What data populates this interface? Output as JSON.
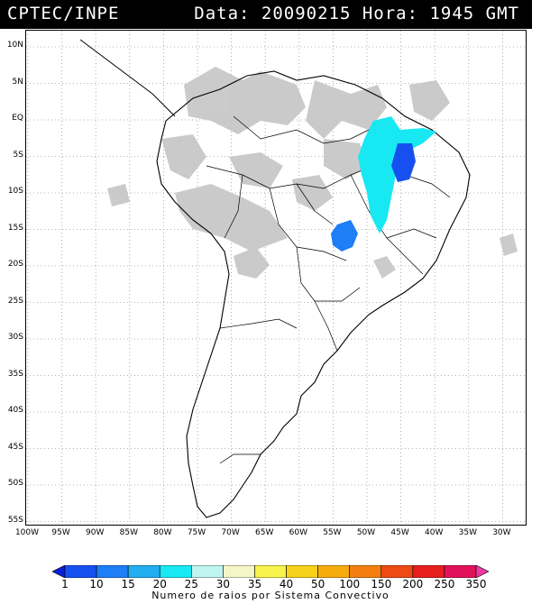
{
  "header": {
    "source": "CPTEC/INPE",
    "datetime": "Data: 20090215 Hora: 1945 GMT"
  },
  "axes": {
    "lat_labels": [
      "10N",
      "5N",
      "EQ",
      "5S",
      "10S",
      "15S",
      "20S",
      "25S",
      "30S",
      "35S",
      "40S",
      "45S",
      "50S",
      "55S"
    ],
    "lon_labels": [
      "100W",
      "95W",
      "90W",
      "85W",
      "80W",
      "75W",
      "70W",
      "65W",
      "60W",
      "55W",
      "50W",
      "45W",
      "40W",
      "35W",
      "30W"
    ]
  },
  "legend": {
    "values": [
      "1",
      "10",
      "15",
      "20",
      "25",
      "30",
      "35",
      "40",
      "50",
      "100",
      "150",
      "200",
      "250",
      "350"
    ],
    "colors": [
      "#0a1fd6",
      "#1750f0",
      "#1d7ef5",
      "#22aef0",
      "#18e8f2",
      "#bff5f0",
      "#f4f6c8",
      "#f8f24a",
      "#f7d21a",
      "#f5ac0c",
      "#f47e10",
      "#ee4a14",
      "#e61e1e",
      "#e0125a",
      "#ee3aa0"
    ],
    "caption": "Numero de raios por Sistema Convectivo"
  },
  "map": {
    "lightning_systems": [
      {
        "region": "northeast-brazil",
        "max_class": "25"
      },
      {
        "region": "central-brazil-goias",
        "max_class": "15"
      },
      {
        "region": "bahia",
        "max_class": "10"
      }
    ]
  }
}
